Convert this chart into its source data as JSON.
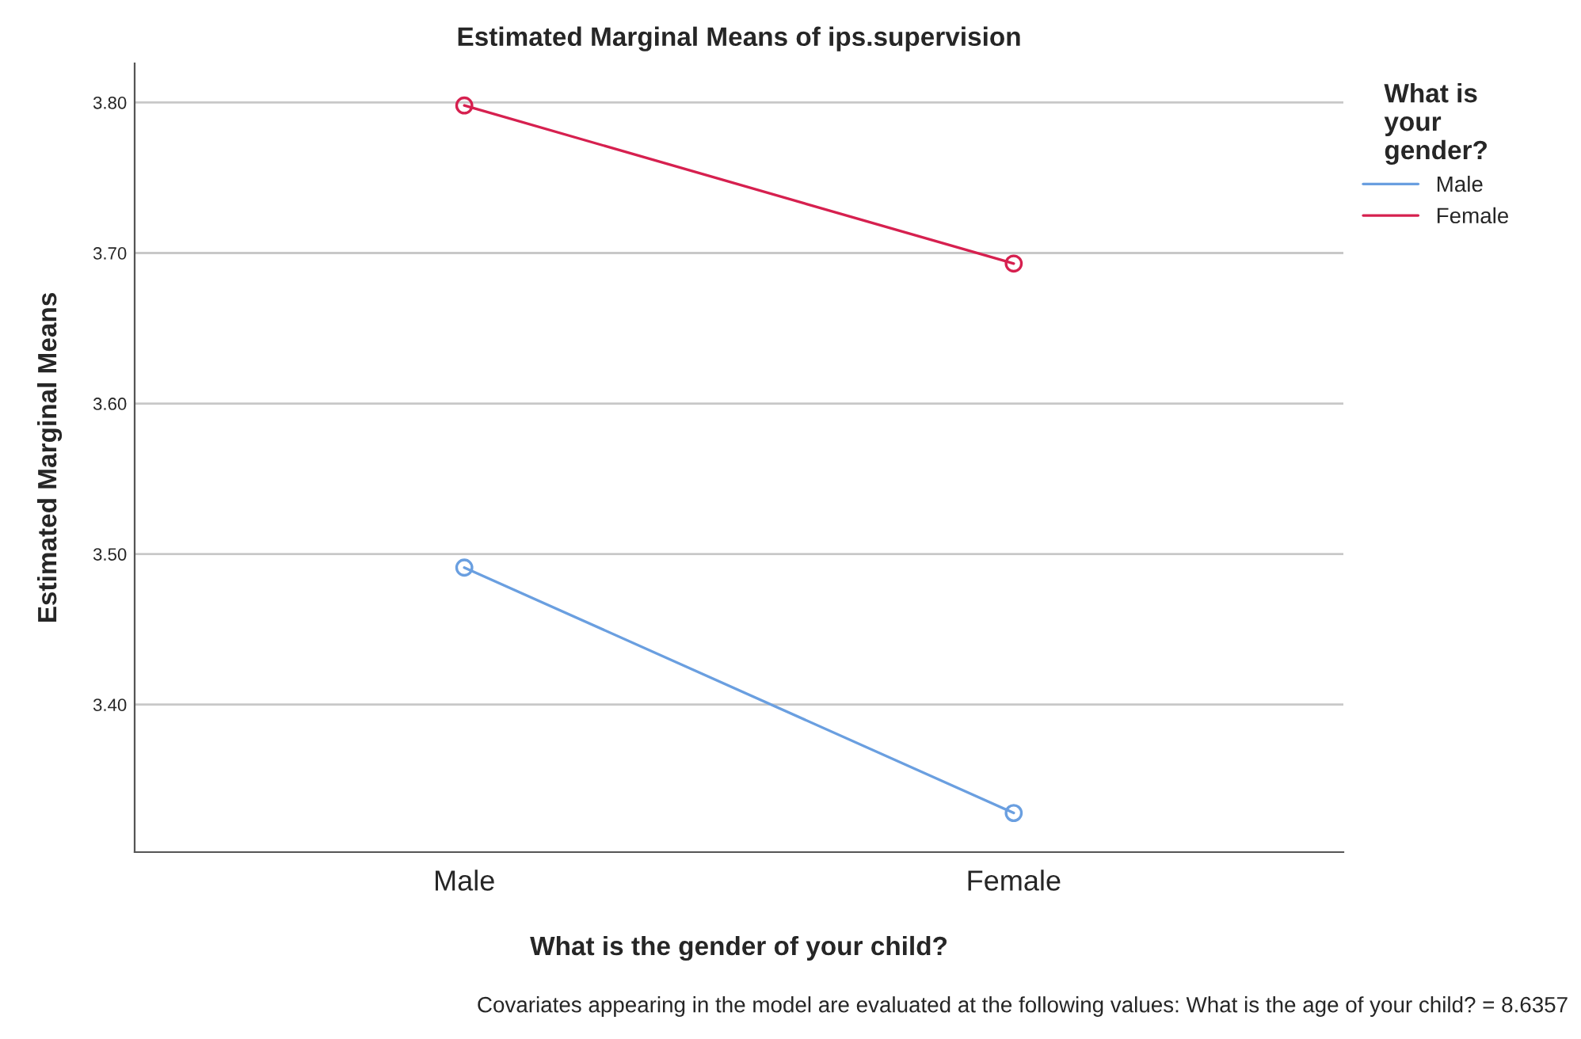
{
  "chart_data": {
    "type": "line",
    "title": "Estimated Marginal Means of ips.supervision",
    "xlabel": "What is the gender of your child?",
    "ylabel": "Estimated Marginal Means",
    "legend_title": "What is your gender?",
    "categories": [
      "Male",
      "Female"
    ],
    "series": [
      {
        "name": "Male",
        "color": "#6a9fe0",
        "values": [
          3.491,
          3.328
        ]
      },
      {
        "name": "Female",
        "color": "#d6204f",
        "values": [
          3.798,
          3.693
        ]
      }
    ],
    "ylim": [
      3.302,
      3.826
    ],
    "yticks": [
      {
        "value": 3.4,
        "label": "3.40"
      },
      {
        "value": 3.5,
        "label": "3.50"
      },
      {
        "value": 3.6,
        "label": "3.60"
      },
      {
        "value": 3.7,
        "label": "3.70"
      },
      {
        "value": 3.8,
        "label": "3.80"
      }
    ],
    "grid": "y",
    "legend": "top right",
    "marker": "circle",
    "line_style": "solid",
    "annotations": [
      "Covariates appearing in the model are evaluated at the following values: What is the age of your child? = 8.6357"
    ]
  }
}
